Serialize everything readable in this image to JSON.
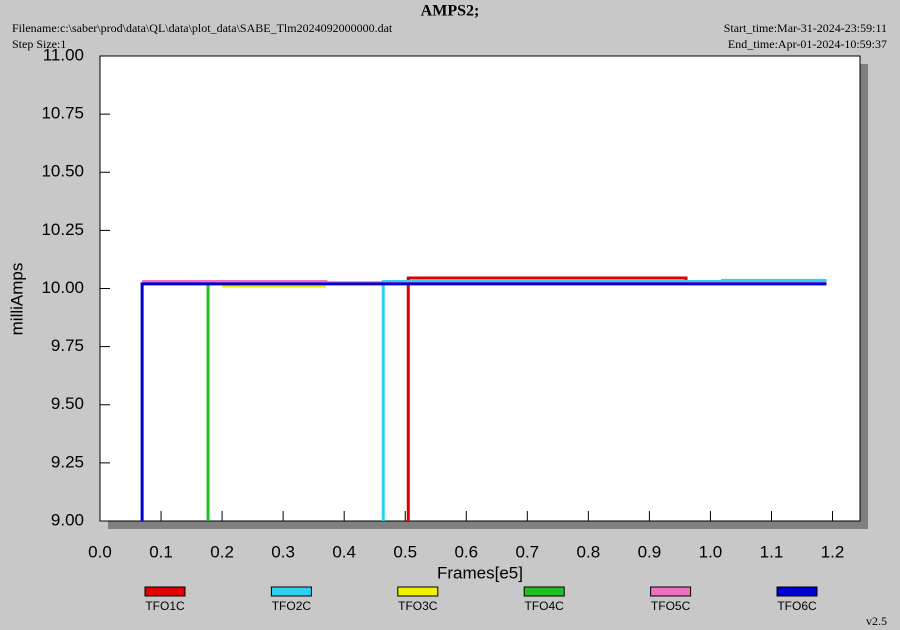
{
  "chart_data": {
    "type": "line",
    "title": "AMPS2;",
    "filename": "Filename:c:\\saber\\prod\\data\\QL\\data\\plot_data\\SABE_Tlm2024092000000.dat",
    "step_size": "Step Size:1",
    "start_time": "Start_time:Mar-31-2024-23:59:11",
    "end_time": "End_time:Apr-01-2024-10:59:37",
    "version": "v2.5",
    "x_label": "Frames[e5]",
    "y_label": "milliAmps",
    "xlim": [
      0,
      1.245
    ],
    "ylim": [
      9.0,
      11.0
    ],
    "xticks": [
      {
        "value": 0,
        "label": "0.0"
      },
      0.1,
      0.2,
      0.3,
      0.4,
      0.5,
      0.6,
      0.7,
      0.8,
      0.9,
      {
        "value": 1,
        "label": "1.0"
      },
      1.1,
      1.2
    ],
    "yticks": [
      {
        "value": 9,
        "label": "9.00"
      },
      9.25,
      {
        "value": 9.5,
        "label": "9.50"
      },
      9.75,
      {
        "value": 10,
        "label": "10.00"
      },
      10.25,
      {
        "value": 10.5,
        "label": "10.50"
      },
      10.75,
      {
        "value": 11,
        "label": "11.00"
      }
    ],
    "series": [
      {
        "name": "TFO1C",
        "color": "#e00000",
        "x": [
          0.505,
          0.505,
          0.96,
          0.96,
          1.19
        ],
        "values": [
          9.0,
          10.045,
          10.045,
          10.03,
          10.03
        ]
      },
      {
        "name": "TFO2C",
        "color": "#30d0f0",
        "x": [
          0.464,
          0.464,
          1.02,
          1.02,
          1.19
        ],
        "values": [
          9.0,
          10.03,
          10.03,
          10.035,
          10.035
        ]
      },
      {
        "name": "TFO3C",
        "color": "#f0f000",
        "x": [
          0.2,
          0.37
        ],
        "values": [
          10.01,
          10.01
        ]
      },
      {
        "name": "TFO4C",
        "color": "#20c020",
        "x": [
          0.177,
          0.177,
          0.23
        ],
        "values": [
          9.0,
          10.02,
          10.02
        ]
      },
      {
        "name": "TFO5C",
        "color": "#f070c0",
        "x": [
          0.069,
          0.37,
          0.37,
          1.19
        ],
        "values": [
          10.03,
          10.03,
          10.025,
          10.025
        ]
      },
      {
        "name": "TFO6C",
        "color": "#0000d0",
        "x": [
          0.069,
          0.069,
          1.19
        ],
        "values": [
          9.0,
          10.02,
          10.02
        ]
      }
    ]
  }
}
